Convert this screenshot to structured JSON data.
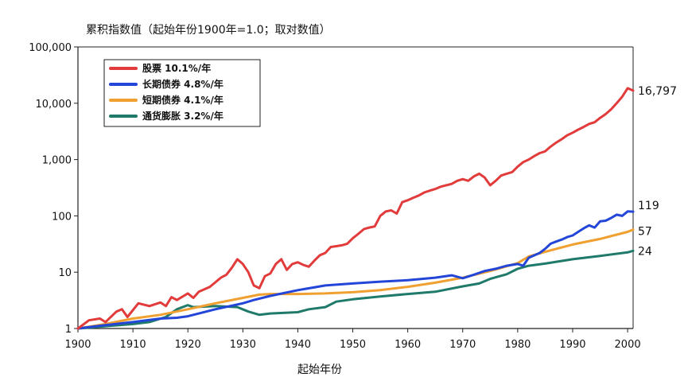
{
  "chart_data": {
    "type": "line",
    "title": "累积指数值（起始年份1900年=1.0；取对数值）",
    "xlabel": "起始年份",
    "ylabel": "",
    "log_scale_y": true,
    "xlim": [
      1900,
      2001
    ],
    "ylim": [
      1,
      100000
    ],
    "x_ticks": [
      1900,
      1910,
      1920,
      1930,
      1940,
      1950,
      1960,
      1970,
      1980,
      1990,
      2000
    ],
    "x_tick_labels": [
      "1900",
      "1910",
      "1920",
      "1930",
      "1940",
      "1950",
      "1960",
      "1970",
      "1980",
      "1990",
      "2000"
    ],
    "y_ticks": [
      1,
      10,
      100,
      1000,
      10000,
      100000
    ],
    "y_tick_labels": [
      "1",
      "10",
      "100",
      "1,000",
      "10,000",
      "100,000"
    ],
    "grid": false,
    "legend_position": "top-left",
    "series": [
      {
        "name": "股票",
        "legend_label": "股票        10.1%/年",
        "color": "#e23b3b",
        "end_label": "16,797",
        "points": [
          [
            1900,
            1.0
          ],
          [
            1902,
            1.4
          ],
          [
            1904,
            1.5
          ],
          [
            1905,
            1.3
          ],
          [
            1907,
            2.0
          ],
          [
            1908,
            2.2
          ],
          [
            1909,
            1.6
          ],
          [
            1911,
            2.8
          ],
          [
            1913,
            2.5
          ],
          [
            1915,
            2.9
          ],
          [
            1916,
            2.5
          ],
          [
            1917,
            3.6
          ],
          [
            1918,
            3.2
          ],
          [
            1920,
            4.2
          ],
          [
            1921,
            3.5
          ],
          [
            1922,
            4.5
          ],
          [
            1924,
            5.5
          ],
          [
            1926,
            8.0
          ],
          [
            1927,
            9.0
          ],
          [
            1928,
            12.0
          ],
          [
            1929,
            17.0
          ],
          [
            1930,
            14.0
          ],
          [
            1931,
            10.0
          ],
          [
            1932,
            5.8
          ],
          [
            1933,
            5.2
          ],
          [
            1934,
            8.5
          ],
          [
            1935,
            9.5
          ],
          [
            1936,
            14.0
          ],
          [
            1937,
            17.0
          ],
          [
            1938,
            11.0
          ],
          [
            1939,
            14.0
          ],
          [
            1940,
            15.0
          ],
          [
            1941,
            13.5
          ],
          [
            1942,
            12.5
          ],
          [
            1943,
            16.0
          ],
          [
            1944,
            20.0
          ],
          [
            1945,
            22.0
          ],
          [
            1946,
            28.0
          ],
          [
            1947,
            29.0
          ],
          [
            1948,
            30.0
          ],
          [
            1949,
            32.0
          ],
          [
            1950,
            40.0
          ],
          [
            1951,
            48.0
          ],
          [
            1952,
            58.0
          ],
          [
            1953,
            62.0
          ],
          [
            1954,
            65.0
          ],
          [
            1955,
            100.0
          ],
          [
            1956,
            120.0
          ],
          [
            1957,
            125.0
          ],
          [
            1958,
            110.0
          ],
          [
            1959,
            175.0
          ],
          [
            1960,
            190.0
          ],
          [
            1961,
            210.0
          ],
          [
            1962,
            230.0
          ],
          [
            1963,
            260.0
          ],
          [
            1964,
            280.0
          ],
          [
            1965,
            300.0
          ],
          [
            1966,
            330.0
          ],
          [
            1967,
            350.0
          ],
          [
            1968,
            370.0
          ],
          [
            1969,
            420.0
          ],
          [
            1970,
            450.0
          ],
          [
            1971,
            420.0
          ],
          [
            1972,
            500.0
          ],
          [
            1973,
            560.0
          ],
          [
            1974,
            480.0
          ],
          [
            1975,
            350.0
          ],
          [
            1976,
            420.0
          ],
          [
            1977,
            520.0
          ],
          [
            1978,
            560.0
          ],
          [
            1979,
            600.0
          ],
          [
            1980,
            750.0
          ],
          [
            1981,
            900.0
          ],
          [
            1982,
            1000.0
          ],
          [
            1983,
            1150.0
          ],
          [
            1984,
            1300.0
          ],
          [
            1985,
            1400.0
          ],
          [
            1986,
            1700.0
          ],
          [
            1987,
            2000.0
          ],
          [
            1988,
            2300.0
          ],
          [
            1989,
            2700.0
          ],
          [
            1990,
            3000.0
          ],
          [
            1991,
            3400.0
          ],
          [
            1992,
            3800.0
          ],
          [
            1993,
            4300.0
          ],
          [
            1994,
            4600.0
          ],
          [
            1995,
            5500.0
          ],
          [
            1996,
            6400.0
          ],
          [
            1997,
            7800.0
          ],
          [
            1998,
            10000.0
          ],
          [
            1999,
            13000.0
          ],
          [
            2000,
            18500.0
          ],
          [
            2001,
            16797.0
          ]
        ]
      },
      {
        "name": "长期债券",
        "legend_label": "长期债券 4.8%/年",
        "color": "#2346d8",
        "end_label": "119",
        "points": [
          [
            1900,
            1.0
          ],
          [
            1905,
            1.15
          ],
          [
            1910,
            1.3
          ],
          [
            1915,
            1.5
          ],
          [
            1918,
            1.55
          ],
          [
            1920,
            1.65
          ],
          [
            1925,
            2.2
          ],
          [
            1930,
            2.8
          ],
          [
            1932,
            3.2
          ],
          [
            1935,
            3.8
          ],
          [
            1940,
            4.8
          ],
          [
            1945,
            5.8
          ],
          [
            1950,
            6.3
          ],
          [
            1955,
            6.8
          ],
          [
            1960,
            7.2
          ],
          [
            1965,
            8.0
          ],
          [
            1968,
            8.8
          ],
          [
            1970,
            7.8
          ],
          [
            1972,
            9.0
          ],
          [
            1974,
            10.5
          ],
          [
            1976,
            11.5
          ],
          [
            1978,
            13.0
          ],
          [
            1980,
            14.0
          ],
          [
            1981,
            13.0
          ],
          [
            1982,
            18.0
          ],
          [
            1984,
            22.0
          ],
          [
            1985,
            26.0
          ],
          [
            1986,
            32.0
          ],
          [
            1987,
            35.0
          ],
          [
            1988,
            38.0
          ],
          [
            1989,
            42.0
          ],
          [
            1990,
            45.0
          ],
          [
            1991,
            52.0
          ],
          [
            1992,
            60.0
          ],
          [
            1993,
            68.0
          ],
          [
            1994,
            62.0
          ],
          [
            1995,
            80.0
          ],
          [
            1996,
            82.0
          ],
          [
            1997,
            92.0
          ],
          [
            1998,
            105.0
          ],
          [
            1999,
            100.0
          ],
          [
            2000,
            120.0
          ],
          [
            2001,
            119.0
          ]
        ]
      },
      {
        "name": "短期债券",
        "legend_label": "短期债券 4.1%/年",
        "color": "#f0a030",
        "end_label": "57",
        "points": [
          [
            1900,
            1.0
          ],
          [
            1905,
            1.2
          ],
          [
            1910,
            1.5
          ],
          [
            1915,
            1.75
          ],
          [
            1920,
            2.2
          ],
          [
            1925,
            2.8
          ],
          [
            1930,
            3.5
          ],
          [
            1933,
            4.0
          ],
          [
            1935,
            4.1
          ],
          [
            1940,
            4.1
          ],
          [
            1945,
            4.2
          ],
          [
            1950,
            4.4
          ],
          [
            1955,
            4.8
          ],
          [
            1960,
            5.5
          ],
          [
            1965,
            6.5
          ],
          [
            1970,
            8.0
          ],
          [
            1975,
            10.5
          ],
          [
            1980,
            14.5
          ],
          [
            1982,
            19.0
          ],
          [
            1985,
            23.0
          ],
          [
            1990,
            31.0
          ],
          [
            1995,
            39.0
          ],
          [
            2000,
            52.0
          ],
          [
            2001,
            57.0
          ]
        ]
      },
      {
        "name": "通货膨胀",
        "legend_label": "通货膨胀 3.2%/年",
        "color": "#1f7a6a",
        "end_label": "24",
        "points": [
          [
            1900,
            1.0
          ],
          [
            1905,
            1.1
          ],
          [
            1910,
            1.2
          ],
          [
            1913,
            1.3
          ],
          [
            1916,
            1.6
          ],
          [
            1918,
            2.2
          ],
          [
            1920,
            2.6
          ],
          [
            1921,
            2.4
          ],
          [
            1925,
            2.5
          ],
          [
            1929,
            2.4
          ],
          [
            1931,
            2.0
          ],
          [
            1933,
            1.75
          ],
          [
            1935,
            1.85
          ],
          [
            1940,
            1.95
          ],
          [
            1942,
            2.2
          ],
          [
            1945,
            2.4
          ],
          [
            1947,
            3.0
          ],
          [
            1950,
            3.3
          ],
          [
            1955,
            3.7
          ],
          [
            1960,
            4.1
          ],
          [
            1965,
            4.5
          ],
          [
            1970,
            5.6
          ],
          [
            1973,
            6.3
          ],
          [
            1975,
            7.6
          ],
          [
            1978,
            9.2
          ],
          [
            1980,
            11.5
          ],
          [
            1982,
            13.0
          ],
          [
            1985,
            14.2
          ],
          [
            1990,
            17.0
          ],
          [
            1995,
            19.5
          ],
          [
            2000,
            22.5
          ],
          [
            2001,
            24.0
          ]
        ]
      }
    ]
  }
}
